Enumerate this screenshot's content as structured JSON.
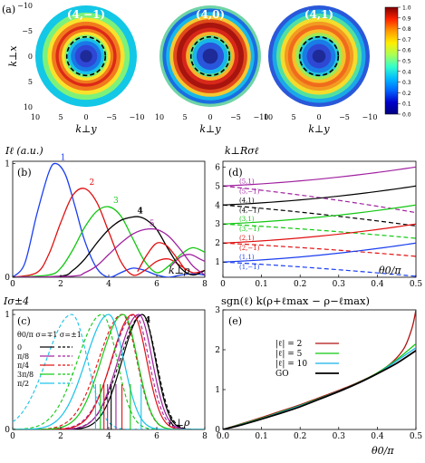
{
  "top": {
    "panel_label": "(a)",
    "maps": [
      {
        "label": "(4,−1)",
        "rings": [
          {
            "r": 1.0,
            "color": "#13c7e6"
          },
          {
            "r": 0.86,
            "color": "#7df27a"
          },
          {
            "r": 0.76,
            "color": "#f9e22b"
          },
          {
            "r": 0.68,
            "color": "#f27a1c"
          },
          {
            "r": 0.6,
            "color": "#dc2a18"
          },
          {
            "r": 0.54,
            "color": "#f27a1c"
          },
          {
            "r": 0.48,
            "color": "#f9e22b"
          },
          {
            "r": 0.42,
            "color": "#7df27a"
          },
          {
            "r": 0.36,
            "color": "#18c2e8"
          },
          {
            "r": 0.3,
            "color": "#1a78e6"
          },
          {
            "r": 0.22,
            "color": "#2f47d6"
          },
          {
            "r": 0.12,
            "color": "#1d2a98"
          }
        ]
      },
      {
        "label": "(4,0)",
        "rings": [
          {
            "r": 1.0,
            "color": "#6fd4a6"
          },
          {
            "r": 0.94,
            "color": "#1a6ee0"
          },
          {
            "r": 0.87,
            "color": "#18b8e8"
          },
          {
            "r": 0.8,
            "color": "#f4c830"
          },
          {
            "r": 0.73,
            "color": "#e04a1a"
          },
          {
            "r": 0.66,
            "color": "#a8140e"
          },
          {
            "r": 0.56,
            "color": "#d8281a"
          },
          {
            "r": 0.48,
            "color": "#f6b22a"
          },
          {
            "r": 0.41,
            "color": "#62e28c"
          },
          {
            "r": 0.35,
            "color": "#18b6e8"
          },
          {
            "r": 0.27,
            "color": "#2a56dc"
          },
          {
            "r": 0.15,
            "color": "#1d2a98"
          }
        ]
      },
      {
        "label": "(4,1)",
        "rings": [
          {
            "r": 1.0,
            "color": "#2a58da"
          },
          {
            "r": 0.92,
            "color": "#1aa8e8"
          },
          {
            "r": 0.84,
            "color": "#52e0a0"
          },
          {
            "r": 0.76,
            "color": "#f4dc2c"
          },
          {
            "r": 0.68,
            "color": "#f29a22"
          },
          {
            "r": 0.61,
            "color": "#f06c1c"
          },
          {
            "r": 0.53,
            "color": "#f6c228"
          },
          {
            "r": 0.46,
            "color": "#9bea58"
          },
          {
            "r": 0.4,
            "color": "#22c6dc"
          },
          {
            "r": 0.33,
            "color": "#1a7ce6"
          },
          {
            "r": 0.24,
            "color": "#2e48d4"
          },
          {
            "r": 0.13,
            "color": "#1d2a98"
          }
        ]
      }
    ],
    "dashed_radius_fraction": 0.38,
    "ylabel": "k⊥x",
    "xlabel": "k⊥y",
    "ticks": [
      "10",
      "5",
      "0",
      "−5",
      "−10"
    ],
    "colorbar": {
      "ticks": [
        "1.0",
        "0.9",
        "0.8",
        "0.7",
        "0.6",
        "0.5",
        "0.4",
        "0.3",
        "0.2",
        "0.1",
        "0.0"
      ],
      "stops": [
        "#7f0000",
        "#ff2200",
        "#ff9900",
        "#ffee00",
        "#aaff55",
        "#33ffcc",
        "#00bbff",
        "#0066ff",
        "#0000cc",
        "#00007f"
      ]
    }
  },
  "panel_b": {
    "label": "(b)",
    "ylabel": "Iℓ (a.u.)",
    "xlabel": "k⊥ρ",
    "xticks": [
      "0",
      "2",
      "4",
      "6",
      "8"
    ],
    "yticks": [
      "0",
      "1"
    ]
  },
  "panel_c": {
    "label": "(c)",
    "ylabel": "Iσ±4",
    "xlabel": "k⊥ρ",
    "xticks": [
      "0",
      "2",
      "4",
      "6",
      "8"
    ],
    "yticks": [
      "0",
      "1"
    ],
    "legend_title": "θ0/π  σ=∓1  σ=±1",
    "legend_items": [
      "0",
      "π/8",
      "π/4",
      "3π/8",
      "π/2"
    ],
    "peak_label": "4"
  },
  "panel_d": {
    "label": "(d)",
    "ylabel": "k⊥Rσℓ",
    "xlabel": "θ0/π",
    "xticks": [
      "0",
      "0.1",
      "0.2",
      "0.3",
      "0.4",
      "0.5"
    ],
    "yticks": [
      "1",
      "2",
      "3",
      "4",
      "5",
      "6"
    ],
    "bottom_caption": "sgn(ℓ) k(ρ+ℓmax − ρ−ℓmax)",
    "labels": [
      {
        "text": "(5,1)",
        "color": "#a020a0"
      },
      {
        "text": "(5,−1)",
        "color": "#a020a0"
      },
      {
        "text": "(4,1)",
        "color": "#000000"
      },
      {
        "text": "(4,−1)",
        "color": "#000000"
      },
      {
        "text": "(3,1)",
        "color": "#12c812"
      },
      {
        "text": "(3,−1)",
        "color": "#12c812"
      },
      {
        "text": "(2,1)",
        "color": "#e01010"
      },
      {
        "text": "(2,−1)",
        "color": "#e01010"
      },
      {
        "text": "(1,1)",
        "color": "#1a3ef0"
      },
      {
        "text": "(1,−1)",
        "color": "#1a3ef0"
      }
    ]
  },
  "panel_e": {
    "label": "(e)",
    "xlabel": "θ0/π",
    "xticks": [
      "0.0",
      "0.1",
      "0.2",
      "0.3",
      "0.4",
      "0.5"
    ],
    "yticks": [
      "0",
      "1",
      "2",
      "3"
    ],
    "legend": [
      {
        "text": "|ℓ| = 2",
        "color": "#b01010"
      },
      {
        "text": "|ℓ| = 5",
        "color": "#12c812"
      },
      {
        "text": "|ℓ| = 10",
        "color": "#18b0e8"
      },
      {
        "text": "GO",
        "color": "#000000"
      }
    ]
  },
  "chart_data": [
    {
      "type": "line",
      "panel": "b",
      "ylabel": "Iℓ (a.u.)",
      "xlabel": "k⊥ρ",
      "xlim": [
        0,
        8
      ],
      "ylim": [
        0,
        1
      ],
      "series": [
        {
          "name": "1",
          "color": "#1a3ef0",
          "x": [
            0,
            0.5,
            1.0,
            1.5,
            1.8,
            2.2,
            2.6,
            3.0,
            3.5,
            4.0,
            4.5,
            5.0,
            5.5,
            6.0,
            6.5,
            7.0,
            7.5,
            8.0
          ],
          "y": [
            0,
            0.12,
            0.55,
            0.92,
            1.0,
            0.9,
            0.62,
            0.32,
            0.08,
            0.0,
            0.04,
            0.08,
            0.06,
            0.02,
            0.0,
            0.02,
            0.03,
            0.02
          ]
        },
        {
          "name": "2",
          "color": "#e01010",
          "x": [
            0,
            1.0,
            1.5,
            2.0,
            2.5,
            3.0,
            3.5,
            4.0,
            4.5,
            5.0,
            5.5,
            6.0,
            6.5,
            7.0,
            7.5,
            8.0
          ],
          "y": [
            0,
            0.04,
            0.2,
            0.48,
            0.72,
            0.78,
            0.66,
            0.4,
            0.14,
            0.02,
            0.06,
            0.14,
            0.16,
            0.1,
            0.04,
            0.06
          ]
        },
        {
          "name": "3",
          "color": "#12c812",
          "x": [
            0,
            1.5,
            2.0,
            2.5,
            3.0,
            3.5,
            4.0,
            4.5,
            5.0,
            5.5,
            6.0,
            6.5,
            7.0,
            7.5,
            8.0
          ],
          "y": [
            0,
            0.02,
            0.08,
            0.24,
            0.44,
            0.58,
            0.62,
            0.54,
            0.34,
            0.14,
            0.04,
            0.1,
            0.2,
            0.26,
            0.22
          ]
        },
        {
          "name": "4",
          "color": "#000000",
          "x": [
            0,
            2.0,
            2.5,
            3.0,
            3.5,
            4.0,
            4.5,
            5.0,
            5.3,
            5.6,
            6.0,
            6.5,
            7.0,
            7.5,
            8.0
          ],
          "y": [
            0,
            0.01,
            0.06,
            0.16,
            0.3,
            0.42,
            0.5,
            0.53,
            0.53,
            0.5,
            0.42,
            0.24,
            0.08,
            0.02,
            0.06
          ]
        },
        {
          "name": "5",
          "color": "#a020a0",
          "x": [
            0,
            2.5,
            3.0,
            3.5,
            4.0,
            4.5,
            5.0,
            5.5,
            6.0,
            6.5,
            7.0,
            7.5,
            8.0
          ],
          "y": [
            0,
            0.01,
            0.04,
            0.1,
            0.2,
            0.3,
            0.38,
            0.42,
            0.42,
            0.36,
            0.24,
            0.1,
            0.02
          ]
        }
      ],
      "extras": [
        {
          "name": "tail-purple",
          "color": "#a020a0",
          "x": [
            6.6,
            7.0,
            7.4,
            7.8,
            8.0
          ],
          "y": [
            0.1,
            0.18,
            0.2,
            0.16,
            0.14
          ]
        },
        {
          "name": "tail-red",
          "color": "#e01010",
          "x": [
            5.2,
            5.6,
            6.0,
            6.4,
            6.8,
            7.2
          ],
          "y": [
            0.05,
            0.2,
            0.3,
            0.28,
            0.18,
            0.06
          ]
        }
      ]
    },
    {
      "type": "line",
      "panel": "c",
      "xlim": [
        0,
        8
      ],
      "ylim": [
        0,
        1
      ],
      "series": [
        {
          "name": "0",
          "color": "#000000",
          "peak": 5.4,
          "width": 1.25
        },
        {
          "name": "π/8",
          "color": "#a020a0",
          "peak": 5.25,
          "width": 1.28
        },
        {
          "name": "π/4",
          "color": "#e01010",
          "peak": 5.0,
          "width": 1.32
        },
        {
          "name": "3π/8",
          "color": "#12c812",
          "peak": 4.6,
          "width": 1.36
        },
        {
          "name": "π/2",
          "color": "#18c2e8",
          "peak": 4.0,
          "width": 1.42
        }
      ],
      "vertical_lines": [
        {
          "x": 4.1,
          "color": "#000000"
        },
        {
          "x": 3.95,
          "color": "#a020a0"
        },
        {
          "x": 3.8,
          "color": "#e01010"
        },
        {
          "x": 3.65,
          "color": "#12c812"
        },
        {
          "x": 3.45,
          "color": "#18c2e8"
        },
        {
          "x": 4.3,
          "color": "#a020a0"
        },
        {
          "x": 4.55,
          "color": "#e01010"
        },
        {
          "x": 4.9,
          "color": "#12c812"
        },
        {
          "x": 5.35,
          "color": "#18c2e8"
        }
      ]
    },
    {
      "type": "line",
      "panel": "d",
      "xlabel": "θ0/π",
      "xlim": [
        0,
        0.5
      ],
      "ylim": [
        0.2,
        6.3
      ],
      "series": [
        {
          "name": "(5,1)",
          "color": "#a020a0",
          "dash": false,
          "start": 5.0,
          "end": 6.0
        },
        {
          "name": "(5,−1)",
          "color": "#a020a0",
          "dash": true,
          "start": 5.0,
          "end": 3.6
        },
        {
          "name": "(4,1)",
          "color": "#000000",
          "dash": false,
          "start": 4.0,
          "end": 5.0
        },
        {
          "name": "(4,−1)",
          "color": "#000000",
          "dash": true,
          "start": 4.0,
          "end": 2.9
        },
        {
          "name": "(3,1)",
          "color": "#12c812",
          "dash": false,
          "start": 3.0,
          "end": 4.0
        },
        {
          "name": "(3,−1)",
          "color": "#12c812",
          "dash": true,
          "start": 3.0,
          "end": 2.25
        },
        {
          "name": "(2,1)",
          "color": "#e01010",
          "dash": false,
          "start": 2.0,
          "end": 3.0
        },
        {
          "name": "(2,−1)",
          "color": "#e01010",
          "dash": true,
          "start": 2.0,
          "end": 1.3
        },
        {
          "name": "(1,1)",
          "color": "#1a3ef0",
          "dash": false,
          "start": 1.0,
          "end": 2.0
        },
        {
          "name": "(1,−1)",
          "color": "#1a3ef0",
          "dash": true,
          "start": 1.0,
          "end": 0.25
        }
      ]
    },
    {
      "type": "line",
      "panel": "e",
      "xlabel": "θ0/π",
      "xlim": [
        0,
        0.5
      ],
      "ylim": [
        0,
        3
      ],
      "series": [
        {
          "name": "|ℓ| = 2",
          "color": "#b01010",
          "x": [
            0,
            0.05,
            0.1,
            0.15,
            0.2,
            0.25,
            0.3,
            0.35,
            0.4,
            0.44,
            0.47,
            0.49,
            0.5
          ],
          "y": [
            0,
            0.15,
            0.3,
            0.46,
            0.62,
            0.8,
            0.98,
            1.18,
            1.42,
            1.7,
            2.05,
            2.55,
            3.0
          ]
        },
        {
          "name": "|ℓ| = 5",
          "color": "#12c812",
          "x": [
            0,
            0.05,
            0.1,
            0.15,
            0.2,
            0.25,
            0.3,
            0.35,
            0.4,
            0.45,
            0.5
          ],
          "y": [
            0,
            0.14,
            0.28,
            0.44,
            0.6,
            0.78,
            0.96,
            1.17,
            1.42,
            1.75,
            2.15
          ]
        },
        {
          "name": "|ℓ| = 10",
          "color": "#18b0e8",
          "x": [
            0,
            0.05,
            0.1,
            0.15,
            0.2,
            0.25,
            0.3,
            0.35,
            0.4,
            0.45,
            0.5
          ],
          "y": [
            0,
            0.13,
            0.27,
            0.43,
            0.59,
            0.77,
            0.96,
            1.16,
            1.4,
            1.72,
            2.05
          ]
        },
        {
          "name": "GO",
          "color": "#000000",
          "x": [
            0,
            0.05,
            0.1,
            0.15,
            0.2,
            0.25,
            0.3,
            0.35,
            0.4,
            0.45,
            0.5
          ],
          "y": [
            0,
            0.12,
            0.26,
            0.41,
            0.57,
            0.76,
            0.95,
            1.16,
            1.4,
            1.66,
            1.98
          ]
        }
      ]
    }
  ]
}
